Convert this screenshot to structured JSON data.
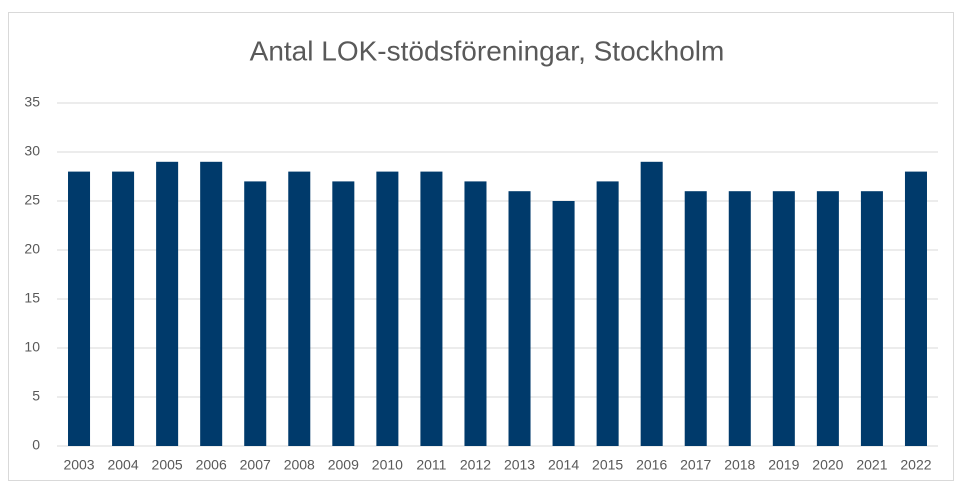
{
  "chart_data": {
    "type": "bar",
    "title": "Antal LOK-stödsföreningar, Stockholm",
    "categories": [
      "2003",
      "2004",
      "2005",
      "2006",
      "2007",
      "2008",
      "2009",
      "2010",
      "2011",
      "2012",
      "2013",
      "2014",
      "2015",
      "2016",
      "2017",
      "2018",
      "2019",
      "2020",
      "2021",
      "2022"
    ],
    "values": [
      28,
      28,
      29,
      29,
      27,
      28,
      27,
      28,
      28,
      27,
      26,
      25,
      27,
      29,
      26,
      26,
      26,
      26,
      26,
      28
    ],
    "color": "#003a6b",
    "ylim": [
      0,
      35
    ],
    "yticks": [
      0,
      5,
      10,
      15,
      20,
      25,
      30,
      35
    ],
    "grid": true
  }
}
